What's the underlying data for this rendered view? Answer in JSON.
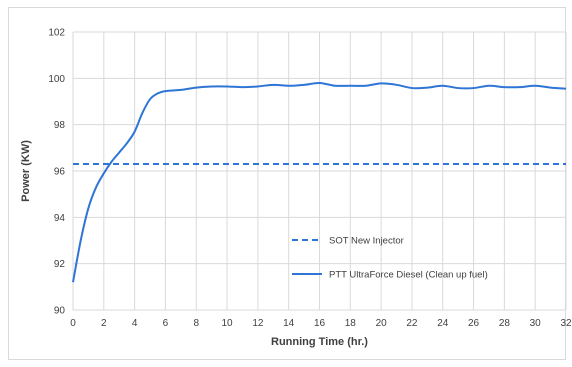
{
  "chart_data": {
    "type": "line",
    "title": "",
    "xlabel": "Running Time (hr.)",
    "ylabel": "Power (KW)",
    "xlim": [
      0,
      32
    ],
    "ylim": [
      90,
      102
    ],
    "xticks": [
      "0",
      "2",
      "4",
      "6",
      "8",
      "10",
      "12",
      "14",
      "16",
      "18",
      "20",
      "22",
      "24",
      "26",
      "28",
      "30",
      "32"
    ],
    "yticks": [
      "90",
      "92",
      "94",
      "96",
      "98",
      "100",
      "102"
    ],
    "grid": true,
    "legend_position": "center-right",
    "series": [
      {
        "name": "SOT New Injector",
        "style": "dashed",
        "color": "#2e75d6",
        "x": [
          0,
          32
        ],
        "y": [
          96.3,
          96.3
        ]
      },
      {
        "name": "PTT UltraForce Diesel (Clean up fuel)",
        "style": "solid",
        "color": "#2e75d6",
        "x": [
          0,
          0.5,
          1,
          1.5,
          2,
          2.5,
          3,
          3.5,
          4,
          4.5,
          5,
          5.5,
          6,
          7,
          8,
          9,
          10,
          11,
          12,
          13,
          14,
          15,
          16,
          17,
          18,
          19,
          20,
          21,
          22,
          23,
          24,
          25,
          26,
          27,
          28,
          29,
          30,
          31,
          32
        ],
        "y": [
          91.2,
          93.0,
          94.4,
          95.3,
          95.9,
          96.4,
          96.8,
          97.2,
          97.7,
          98.5,
          99.1,
          99.35,
          99.45,
          99.5,
          99.6,
          99.65,
          99.65,
          99.62,
          99.65,
          99.72,
          99.68,
          99.72,
          99.8,
          99.68,
          99.68,
          99.68,
          99.78,
          99.72,
          99.58,
          99.6,
          99.68,
          99.58,
          99.58,
          99.68,
          99.62,
          99.62,
          99.68,
          99.6,
          99.55
        ]
      }
    ]
  }
}
